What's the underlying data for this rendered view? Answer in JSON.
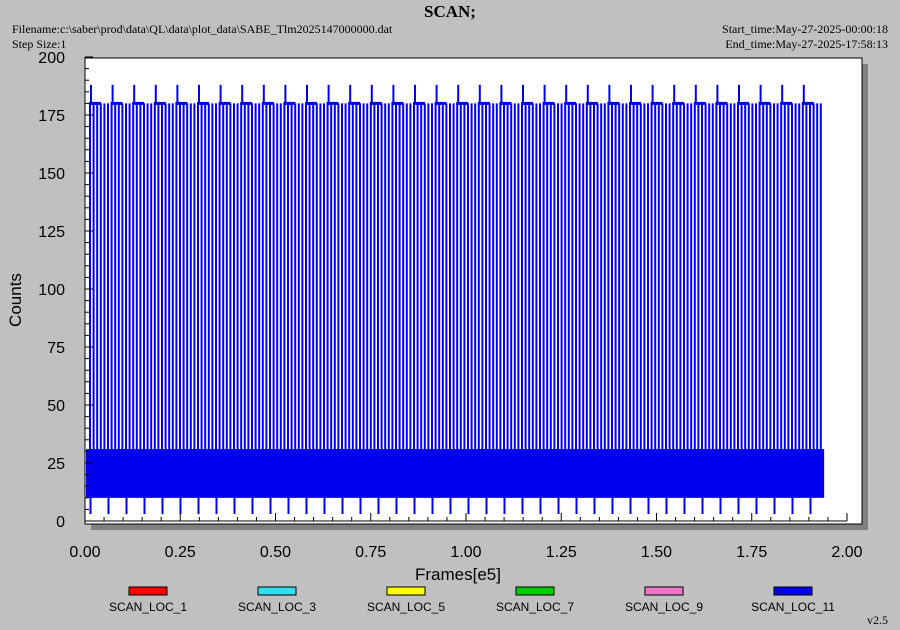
{
  "header": {
    "title": "SCAN;",
    "filename": "Filename:c:\\saber\\prod\\data\\QL\\data\\plot_data\\SABE_Tlm2025147000000.dat",
    "step_size": "Step Size:1",
    "start_time": "Start_time:May-27-2025-00:00:18",
    "end_time": "End_time:May-27-2025-17:58:13"
  },
  "version": "v2.5",
  "colors": {
    "background": "#c0c0c0",
    "plot_area": "#ffffff",
    "shadow": "#808080",
    "data_blue": "#0000ee"
  },
  "chart_data": {
    "type": "line",
    "title": "SCAN;",
    "xlabel": "Frames[e5]",
    "ylabel": "Counts",
    "xlim": [
      0,
      2.0
    ],
    "ylim": [
      0,
      200
    ],
    "x_ticks": [
      "0.00",
      "0.25",
      "0.50",
      "0.75",
      "1.00",
      "1.25",
      "1.50",
      "1.75",
      "2.00"
    ],
    "y_ticks": [
      "0",
      "25",
      "50",
      "75",
      "100",
      "125",
      "150",
      "175",
      "200"
    ],
    "data_extent_x": 1.94,
    "series": [
      {
        "name": "SCAN_LOC_1",
        "color": "#ff0000",
        "values": []
      },
      {
        "name": "SCAN_LOC_3",
        "color": "#33ddee",
        "values": []
      },
      {
        "name": "SCAN_LOC_5",
        "color": "#ffff00",
        "values": []
      },
      {
        "name": "SCAN_LOC_7",
        "color": "#00cc00",
        "values": []
      },
      {
        "name": "SCAN_LOC_9",
        "color": "#ee77cc",
        "values": []
      },
      {
        "name": "SCAN_LOC_11",
        "color": "#0000ee",
        "band_low": 10,
        "band_high": 31,
        "upper_level": 180,
        "spike_level": 188,
        "min_level": 3
      }
    ],
    "legend_position": "bottom"
  }
}
